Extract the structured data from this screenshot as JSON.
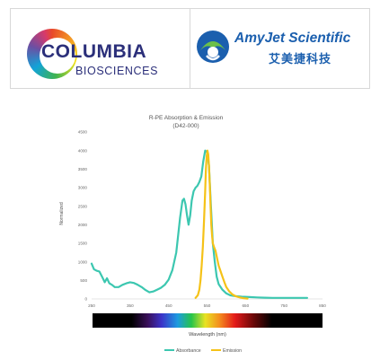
{
  "logos": {
    "left": {
      "name": "COLUMBIA",
      "sub": "BIOSCIENCES"
    },
    "right": {
      "name": "AmyJet Scientific",
      "cn": "艾美捷科技"
    }
  },
  "chart_data": {
    "type": "line",
    "title": "R-PE Absorption & Emission",
    "subtitle": "(D42-000)",
    "xlabel": "Wavelength (nm)",
    "ylabel": "Normalized",
    "xlim": [
      250,
      850
    ],
    "ylim": [
      0,
      4500
    ],
    "xticks": [
      250,
      350,
      450,
      550,
      650,
      750,
      850
    ],
    "yticks": [
      0,
      500,
      1000,
      1500,
      2000,
      2500,
      3000,
      3500,
      4000,
      4500
    ],
    "grid": false,
    "legend_position": "bottom",
    "series": [
      {
        "name": "Absorbance",
        "color": "#3cc7b0",
        "x": [
          250,
          256,
          263,
          270,
          277,
          284,
          290,
          296,
          303,
          310,
          320,
          330,
          340,
          350,
          360,
          370,
          380,
          390,
          400,
          410,
          420,
          430,
          440,
          450,
          460,
          470,
          480,
          486,
          490,
          494,
          498,
          502,
          506,
          510,
          515,
          520,
          525,
          530,
          535,
          540,
          545,
          550,
          555,
          560,
          565,
          570,
          575,
          580,
          590,
          600,
          610,
          620,
          640,
          660,
          680,
          700,
          720,
          740,
          760,
          780,
          800,
          810
        ],
        "y": [
          950,
          800,
          760,
          740,
          600,
          450,
          560,
          420,
          380,
          320,
          320,
          380,
          420,
          450,
          430,
          380,
          320,
          240,
          180,
          200,
          250,
          300,
          380,
          520,
          780,
          1250,
          2200,
          2650,
          2700,
          2550,
          2250,
          2000,
          2250,
          2650,
          2900,
          3000,
          3050,
          3150,
          3300,
          3700,
          4000,
          3950,
          3600,
          2500,
          1500,
          1000,
          600,
          400,
          250,
          150,
          100,
          80,
          60,
          50,
          40,
          35,
          30,
          30,
          30,
          30,
          30,
          30
        ]
      },
      {
        "name": "Emission",
        "color": "#f5c218",
        "x": [
          520,
          526,
          530,
          533,
          536,
          539,
          542,
          545,
          547,
          549,
          551,
          553,
          555,
          557,
          559,
          561,
          563,
          565,
          568,
          572,
          576,
          580,
          585,
          590,
          595,
          600,
          608,
          616,
          625,
          635,
          645,
          655
        ],
        "y": [
          30,
          100,
          250,
          500,
          900,
          1400,
          2100,
          2900,
          3500,
          3850,
          4000,
          3900,
          3600,
          3100,
          2500,
          2000,
          1700,
          1500,
          1400,
          1300,
          1100,
          900,
          750,
          600,
          450,
          320,
          200,
          120,
          70,
          40,
          20,
          10
        ]
      }
    ]
  }
}
